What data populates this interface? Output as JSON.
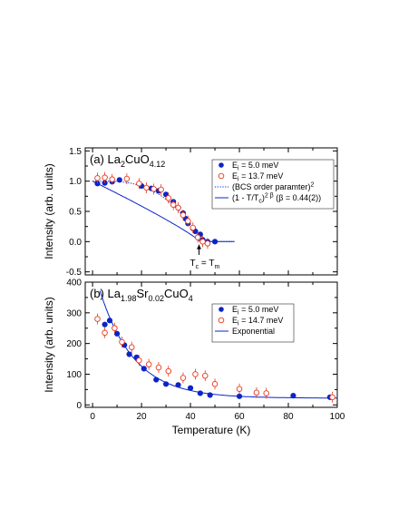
{
  "colors": {
    "blue": "#0a24c8",
    "red": "#e8391c",
    "axis": "#000000"
  },
  "chart_data": [
    {
      "id": "a",
      "type": "scatter",
      "panel_label": "(a) La",
      "panel_sub1": "2",
      "panel_mid1": "CuO",
      "panel_sub2": "4.12",
      "panel_mid2": "",
      "panel_sub3": "",
      "ylabel": "Intensity (arb. units)",
      "xlim": [
        -3,
        100
      ],
      "ylim": [
        -0.55,
        1.55
      ],
      "yticks": [
        -0.5,
        0.0,
        0.5,
        1.0,
        1.5
      ],
      "ytick_labels": [
        "-0.5",
        "0.0",
        "0.5",
        "1.0",
        "1.5"
      ],
      "legend_position": "right",
      "series": [
        {
          "name_main": "E",
          "name_sub": "i",
          "name_rest": " = 5.0 meV",
          "marker": "filled-circle",
          "color": "blue",
          "points": [
            [
              2,
              0.96
            ],
            [
              5,
              0.97
            ],
            [
              8,
              0.99
            ],
            [
              11,
              1.02
            ],
            [
              20,
              0.92
            ],
            [
              24,
              0.88
            ],
            [
              27,
              0.84
            ],
            [
              30,
              0.78
            ],
            [
              33,
              0.66
            ],
            [
              35,
              0.56
            ],
            [
              37,
              0.47
            ],
            [
              38,
              0.38
            ],
            [
              39,
              0.3
            ],
            [
              41,
              0.22
            ],
            [
              42,
              0.17
            ],
            [
              44,
              0.12
            ],
            [
              45,
              0.03
            ],
            [
              47,
              0.0
            ],
            [
              50,
              0.0
            ]
          ]
        },
        {
          "name_main": "E",
          "name_sub": "i",
          "name_rest": " = 13.7 meV",
          "marker": "open-circle",
          "color": "red",
          "points": [
            [
              2,
              1.05
            ],
            [
              5,
              1.06
            ],
            [
              8,
              1.03
            ],
            [
              14,
              1.04
            ],
            [
              19,
              0.96
            ],
            [
              22,
              0.89
            ],
            [
              25,
              0.87
            ],
            [
              28,
              0.86
            ],
            [
              31,
              0.72
            ],
            [
              33,
              0.61
            ],
            [
              35,
              0.56
            ],
            [
              37,
              0.44
            ],
            [
              39,
              0.34
            ],
            [
              41,
              0.23
            ],
            [
              43,
              0.07
            ],
            [
              45,
              0.0
            ],
            [
              47,
              -0.03
            ]
          ]
        }
      ],
      "curves": [
        {
          "name": "(BCS order paramter)",
          "superscript": "2",
          "kind": "bcs",
          "color": "blue",
          "style": "dotted"
        },
        {
          "name": "(1 - T/T",
          "name_sub": "c",
          "name_rest": ")",
          "superscript": "2 β",
          "name_tail": " (β = 0.44(2))",
          "kind": "power",
          "tc": 44,
          "beta": 0.44,
          "color": "blue",
          "style": "solid"
        }
      ],
      "annotation": {
        "text": "T",
        "sub1": "c",
        "mid": " = T",
        "sub2": "m",
        "x": 43.5
      }
    },
    {
      "id": "b",
      "type": "scatter",
      "panel_label": "(b) La",
      "panel_sub1": "1.98",
      "panel_mid1": "Sr",
      "panel_sub2": "0.02",
      "panel_mid2": "CuO",
      "panel_sub3": "4",
      "ylabel": "Intensity (arb. units)",
      "xlabel": "Temperature (K)",
      "xlim": [
        -3,
        100
      ],
      "ylim": [
        -8,
        400
      ],
      "yticks": [
        0,
        100,
        200,
        300,
        400
      ],
      "ytick_labels": [
        "0",
        "100",
        "200",
        "300",
        "400"
      ],
      "xticks": [
        0,
        20,
        40,
        60,
        80,
        100
      ],
      "xtick_labels": [
        "0",
        "20",
        "40",
        "60",
        "80",
        "100"
      ],
      "legend_position": "right",
      "series": [
        {
          "name_main": "E",
          "name_sub": "i",
          "name_rest": " = 5.0 meV",
          "marker": "filled-circle",
          "color": "blue",
          "points": [
            [
              5,
              262
            ],
            [
              7,
              275
            ],
            [
              10,
              232
            ],
            [
              13,
              195
            ],
            [
              15,
              165
            ],
            [
              18,
              155
            ],
            [
              21,
              118
            ],
            [
              26,
              82
            ],
            [
              30,
              68
            ],
            [
              35,
              65
            ],
            [
              40,
              55
            ],
            [
              44,
              38
            ],
            [
              48,
              32
            ],
            [
              60,
              28
            ],
            [
              82,
              30
            ],
            [
              97,
              25
            ]
          ]
        },
        {
          "name_main": "E",
          "name_sub": "i",
          "name_rest": " = 14.7 meV",
          "marker": "open-circle",
          "color": "red",
          "points": [
            [
              2,
              280
            ],
            [
              5,
              235
            ],
            [
              9,
              250
            ],
            [
              12,
              205
            ],
            [
              16,
              188
            ],
            [
              19,
              145
            ],
            [
              23,
              132
            ],
            [
              27,
              122
            ],
            [
              31,
              110
            ],
            [
              37,
              88
            ],
            [
              42,
              100
            ],
            [
              46,
              95
            ],
            [
              50,
              68
            ],
            [
              60,
              52
            ],
            [
              67,
              40
            ],
            [
              71,
              38
            ],
            [
              98,
              25
            ]
          ]
        }
      ],
      "curves": [
        {
          "name": "Exponential",
          "kind": "exp",
          "A": 350,
          "tau": 14,
          "C": 22,
          "x0": 3,
          "color": "blue",
          "style": "solid"
        }
      ]
    }
  ]
}
